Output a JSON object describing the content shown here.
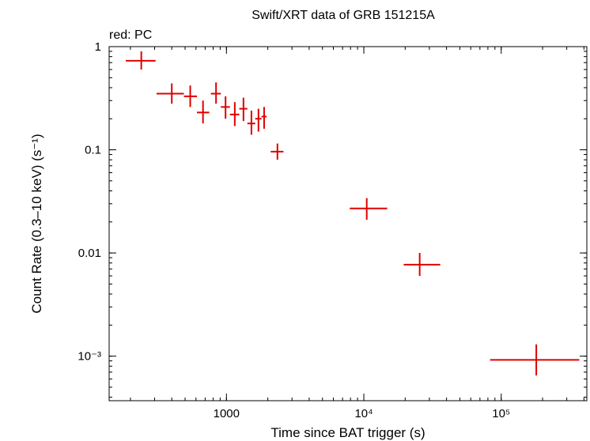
{
  "chart_data": {
    "type": "scatter",
    "title": "Swift/XRT data of GRB 151215A",
    "subtitle": "red: PC",
    "xlabel": "Time since BAT trigger (s)",
    "ylabel": "Count Rate (0.3–10 keV) (s⁻¹)",
    "xscale": "log",
    "yscale": "log",
    "xlim": [
      140,
      420000
    ],
    "ylim": [
      0.00037,
      1.0
    ],
    "x_ticks": [
      {
        "value": 1000,
        "label": "1000"
      },
      {
        "value": 10000,
        "label": "10⁴"
      },
      {
        "value": 100000,
        "label": "10⁵"
      }
    ],
    "y_ticks": [
      {
        "value": 1,
        "label": "1"
      },
      {
        "value": 0.1,
        "label": "0.1"
      },
      {
        "value": 0.01,
        "label": "0.01"
      },
      {
        "value": 0.001,
        "label": "10⁻³"
      }
    ],
    "series": [
      {
        "name": "PC",
        "color": "#e00000",
        "points": [
          {
            "x": 240,
            "xlo": 185,
            "xhi": 305,
            "y": 0.73,
            "ylo": 0.6,
            "yhi": 0.9
          },
          {
            "x": 400,
            "xlo": 310,
            "xhi": 490,
            "y": 0.35,
            "ylo": 0.28,
            "yhi": 0.44
          },
          {
            "x": 545,
            "xlo": 490,
            "xhi": 610,
            "y": 0.33,
            "ylo": 0.26,
            "yhi": 0.42
          },
          {
            "x": 675,
            "xlo": 610,
            "xhi": 750,
            "y": 0.23,
            "ylo": 0.18,
            "yhi": 0.3
          },
          {
            "x": 840,
            "xlo": 770,
            "xhi": 910,
            "y": 0.35,
            "ylo": 0.28,
            "yhi": 0.45
          },
          {
            "x": 985,
            "xlo": 910,
            "xhi": 1060,
            "y": 0.26,
            "ylo": 0.2,
            "yhi": 0.33
          },
          {
            "x": 1150,
            "xlo": 1060,
            "xhi": 1240,
            "y": 0.22,
            "ylo": 0.17,
            "yhi": 0.29
          },
          {
            "x": 1330,
            "xlo": 1240,
            "xhi": 1420,
            "y": 0.25,
            "ylo": 0.19,
            "yhi": 0.32
          },
          {
            "x": 1520,
            "xlo": 1420,
            "xhi": 1620,
            "y": 0.18,
            "ylo": 0.14,
            "yhi": 0.24
          },
          {
            "x": 1710,
            "xlo": 1620,
            "xhi": 1800,
            "y": 0.2,
            "ylo": 0.15,
            "yhi": 0.25
          },
          {
            "x": 1880,
            "xlo": 1800,
            "xhi": 1960,
            "y": 0.21,
            "ylo": 0.16,
            "yhi": 0.26
          },
          {
            "x": 2350,
            "xlo": 2100,
            "xhi": 2600,
            "y": 0.096,
            "ylo": 0.08,
            "yhi": 0.115
          },
          {
            "x": 10500,
            "xlo": 7900,
            "xhi": 14800,
            "y": 0.027,
            "ylo": 0.021,
            "yhi": 0.034
          },
          {
            "x": 25500,
            "xlo": 19500,
            "xhi": 36000,
            "y": 0.0077,
            "ylo": 0.006,
            "yhi": 0.01
          },
          {
            "x": 180000,
            "xlo": 83000,
            "xhi": 370000,
            "y": 0.00092,
            "ylo": 0.00065,
            "yhi": 0.0013
          }
        ]
      }
    ]
  }
}
